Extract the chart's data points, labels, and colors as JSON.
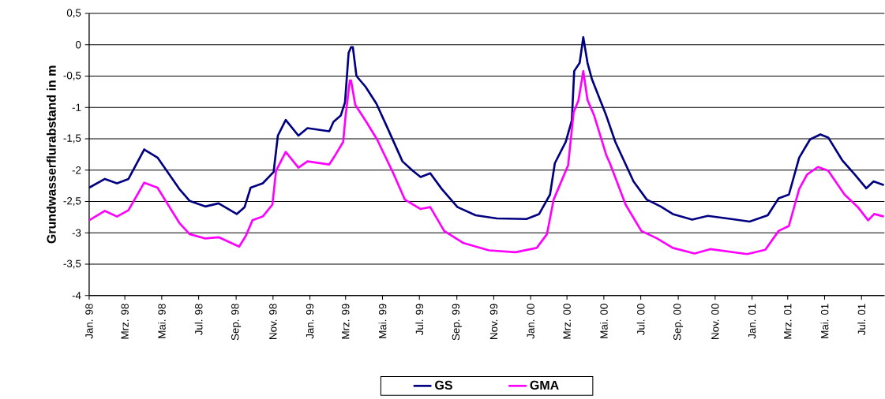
{
  "chart_data": {
    "type": "line",
    "ylabel": "Grundwasserflurabstand in m",
    "xlim": [
      "1998-01-01",
      "2001-08-08"
    ],
    "xticks": [
      {
        "value": "1998-01-01",
        "label": "Jan. 98"
      },
      {
        "value": "1998-03-01",
        "label": "Mrz. 98"
      },
      {
        "value": "1998-05-01",
        "label": "Mai. 98"
      },
      {
        "value": "1998-07-01",
        "label": "Jul. 98"
      },
      {
        "value": "1998-09-01",
        "label": "Sep. 98"
      },
      {
        "value": "1998-11-01",
        "label": "Nov. 98"
      },
      {
        "value": "1999-01-01",
        "label": "Jan. 99"
      },
      {
        "value": "1999-03-01",
        "label": "Mrz. 99"
      },
      {
        "value": "1999-05-01",
        "label": "Mai. 99"
      },
      {
        "value": "1999-07-01",
        "label": "Jul. 99"
      },
      {
        "value": "1999-09-01",
        "label": "Sep. 99"
      },
      {
        "value": "1999-11-01",
        "label": "Nov. 99"
      },
      {
        "value": "2000-01-01",
        "label": "Jan. 00"
      },
      {
        "value": "2000-03-01",
        "label": "Mrz. 00"
      },
      {
        "value": "2000-05-01",
        "label": "Mai. 00"
      },
      {
        "value": "2000-07-01",
        "label": "Jul. 00"
      },
      {
        "value": "2000-09-01",
        "label": "Sep. 00"
      },
      {
        "value": "2000-11-01",
        "label": "Nov. 00"
      },
      {
        "value": "2001-01-01",
        "label": "Jan. 01"
      },
      {
        "value": "2001-03-01",
        "label": "Mrz. 01"
      },
      {
        "value": "2001-05-01",
        "label": "Mai. 01"
      },
      {
        "value": "2001-07-01",
        "label": "Jul. 01"
      }
    ],
    "ylim": [
      -4,
      0.5
    ],
    "yticks": [
      {
        "value": -4,
        "label": "-4"
      },
      {
        "value": -3.5,
        "label": "-3,5"
      },
      {
        "value": -3,
        "label": "-3"
      },
      {
        "value": -2.5,
        "label": "-2,5"
      },
      {
        "value": -2,
        "label": "-2"
      },
      {
        "value": -1.5,
        "label": "-1,5"
      },
      {
        "value": -1,
        "label": "-1"
      },
      {
        "value": -0.5,
        "label": "-0,5"
      },
      {
        "value": 0,
        "label": "0"
      },
      {
        "value": 0.5,
        "label": "0,5"
      }
    ],
    "grid": "y",
    "legend": "bottom",
    "series": [
      {
        "name": "GS",
        "color": "#000080",
        "x": [
          "1998-01-01",
          "1998-01-27",
          "1998-02-16",
          "1998-03-07",
          "1998-04-02",
          "1998-04-24",
          "1998-05-30",
          "1998-06-16",
          "1998-07-12",
          "1998-08-03",
          "1998-09-02",
          "1998-09-15",
          "1998-09-25",
          "1998-10-15",
          "1998-11-02",
          "1998-11-09",
          "1998-11-22",
          "1998-12-13",
          "1998-12-28",
          "1999-02-02",
          "1999-02-09",
          "1999-02-21",
          "1999-02-28",
          "1999-03-06",
          "1999-03-10",
          "1999-03-13",
          "1999-03-19",
          "1999-04-03",
          "1999-04-21",
          "1999-05-08",
          "1999-06-03",
          "1999-06-20",
          "1999-07-03",
          "1999-07-19",
          "1999-08-07",
          "1999-09-02",
          "1999-10-02",
          "1999-11-06",
          "1999-12-25",
          "2000-01-15",
          "2000-02-02",
          "2000-02-10",
          "2000-02-28",
          "2000-03-09",
          "2000-03-13",
          "2000-03-22",
          "2000-03-28",
          "2000-04-04",
          "2000-04-11",
          "2000-05-05",
          "2000-05-20",
          "2000-06-19",
          "2000-07-11",
          "2000-08-03",
          "2000-08-23",
          "2000-09-24",
          "2000-10-20",
          "2000-11-28",
          "2000-12-28",
          "2001-01-27",
          "2001-02-14",
          "2001-03-03",
          "2001-03-20",
          "2001-04-07",
          "2001-04-24",
          "2001-05-07",
          "2001-05-30",
          "2001-06-20",
          "2001-07-09",
          "2001-07-21",
          "2001-08-07"
        ],
        "values": [
          -2.28,
          -2.14,
          -2.21,
          -2.14,
          -1.67,
          -1.8,
          -2.3,
          -2.49,
          -2.58,
          -2.53,
          -2.7,
          -2.59,
          -2.28,
          -2.21,
          -2.03,
          -1.45,
          -1.2,
          -1.45,
          -1.33,
          -1.38,
          -1.23,
          -1.13,
          -0.92,
          -0.13,
          -0.04,
          -0.04,
          -0.5,
          -0.67,
          -0.94,
          -1.3,
          -1.86,
          -2.01,
          -2.11,
          -2.05,
          -2.3,
          -2.59,
          -2.72,
          -2.77,
          -2.78,
          -2.7,
          -2.39,
          -1.89,
          -1.55,
          -1.21,
          -0.42,
          -0.29,
          0.12,
          -0.29,
          -0.54,
          -1.13,
          -1.55,
          -2.18,
          -2.47,
          -2.58,
          -2.7,
          -2.79,
          -2.73,
          -2.78,
          -2.82,
          -2.72,
          -2.45,
          -2.39,
          -1.8,
          -1.51,
          -1.43,
          -1.48,
          -1.84,
          -2.07,
          -2.29,
          -2.18,
          -2.24
        ]
      },
      {
        "name": "GMA",
        "color": "#ff00ff",
        "x": [
          "1998-01-01",
          "1998-01-27",
          "1998-02-16",
          "1998-03-07",
          "1998-04-02",
          "1998-04-24",
          "1998-05-30",
          "1998-06-16",
          "1998-07-12",
          "1998-08-03",
          "1998-09-06",
          "1998-09-17",
          "1998-09-28",
          "1998-10-15",
          "1998-10-31",
          "1998-11-06",
          "1998-11-22",
          "1998-12-13",
          "1998-12-28",
          "1999-02-02",
          "1999-02-12",
          "1999-02-25",
          "1999-03-01",
          "1999-03-08",
          "1999-03-10",
          "1999-03-17",
          "1999-04-03",
          "1999-04-22",
          "1999-05-17",
          "1999-06-07",
          "1999-07-03",
          "1999-07-19",
          "1999-08-11",
          "1999-09-11",
          "1999-10-24",
          "1999-12-07",
          "2000-01-11",
          "2000-01-28",
          "2000-02-08",
          "2000-03-03",
          "2000-03-12",
          "2000-03-20",
          "2000-03-28",
          "2000-04-04",
          "2000-04-15",
          "2000-05-05",
          "2000-05-11",
          "2000-06-06",
          "2000-07-02",
          "2000-07-28",
          "2000-08-23",
          "2000-09-28",
          "2000-10-24",
          "2000-12-24",
          "2001-01-23",
          "2001-02-14",
          "2001-03-03",
          "2001-03-20",
          "2001-04-02",
          "2001-04-20",
          "2001-05-07",
          "2001-06-03",
          "2001-06-25",
          "2001-07-12",
          "2001-07-22",
          "2001-08-07"
        ],
        "values": [
          -2.8,
          -2.65,
          -2.74,
          -2.64,
          -2.2,
          -2.28,
          -2.84,
          -3.02,
          -3.09,
          -3.07,
          -3.22,
          -3.05,
          -2.8,
          -2.74,
          -2.55,
          -2.01,
          -1.71,
          -1.96,
          -1.86,
          -1.91,
          -1.76,
          -1.55,
          -1.13,
          -0.57,
          -0.57,
          -0.96,
          -1.21,
          -1.51,
          -2.01,
          -2.47,
          -2.62,
          -2.59,
          -2.97,
          -3.16,
          -3.28,
          -3.31,
          -3.24,
          -3.02,
          -2.47,
          -1.92,
          -1.08,
          -0.89,
          -0.42,
          -0.88,
          -1.13,
          -1.76,
          -1.89,
          -2.55,
          -2.97,
          -3.09,
          -3.24,
          -3.33,
          -3.26,
          -3.34,
          -3.27,
          -2.97,
          -2.89,
          -2.3,
          -2.07,
          -1.95,
          -2.01,
          -2.39,
          -2.59,
          -2.8,
          -2.7,
          -2.74
        ]
      }
    ]
  }
}
